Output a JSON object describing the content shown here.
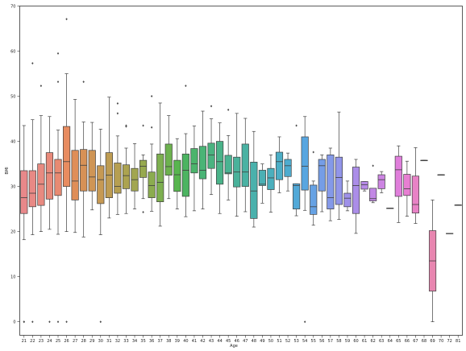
{
  "chart_data": {
    "type": "box",
    "title": "",
    "xlabel": "Age",
    "ylabel": "BMI",
    "ylim": [
      -3,
      70
    ],
    "yticks": [
      0,
      10,
      20,
      30,
      40,
      50,
      60,
      70
    ],
    "grid": false,
    "legend": "none",
    "categories": [
      "21",
      "22",
      "23",
      "24",
      "25",
      "26",
      "27",
      "28",
      "29",
      "30",
      "31",
      "32",
      "33",
      "34",
      "35",
      "36",
      "37",
      "38",
      "39",
      "40",
      "41",
      "42",
      "43",
      "44",
      "45",
      "46",
      "47",
      "48",
      "49",
      "50",
      "51",
      "52",
      "53",
      "54",
      "55",
      "56",
      "57",
      "58",
      "59",
      "60",
      "61",
      "62",
      "63",
      "64",
      "65",
      "66",
      "67",
      "68",
      "69",
      "70",
      "72",
      "81"
    ],
    "boxes": [
      {
        "age": "21",
        "whislo": 18.2,
        "q1": 24.0,
        "med": 27.5,
        "q3": 33.5,
        "whishi": 43.5,
        "fliers": [
          0,
          0
        ],
        "color": "#e8888a"
      },
      {
        "age": "22",
        "whislo": 19.3,
        "q1": 25.5,
        "med": 28.5,
        "q3": 33.5,
        "whishi": 44.8,
        "fliers": [
          57.3,
          0
        ],
        "color": "#e88985"
      },
      {
        "age": "23",
        "whislo": 20.0,
        "q1": 25.8,
        "med": 30.5,
        "q3": 35.0,
        "whishi": 45.7,
        "fliers": [
          52.3
        ],
        "color": "#e88a80"
      },
      {
        "age": "24",
        "whislo": 20.5,
        "q1": 27.2,
        "med": 33.0,
        "q3": 37.5,
        "whishi": 45.5,
        "fliers": [
          0
        ],
        "color": "#e8897a"
      },
      {
        "age": "25",
        "whislo": 19.4,
        "q1": 28.0,
        "med": 33.0,
        "q3": 36.0,
        "whishi": 42.5,
        "fliers": [
          59.5,
          53.2,
          0
        ],
        "color": "#e88a72"
      },
      {
        "age": "26",
        "whislo": 20.0,
        "q1": 30.0,
        "med": 35.5,
        "q3": 43.3,
        "whishi": 55.0,
        "fliers": [
          67.1,
          0
        ],
        "color": "#e88c60"
      },
      {
        "age": "27",
        "whislo": 19.8,
        "q1": 27.0,
        "med": 31.2,
        "q3": 38.0,
        "whishi": 49.3,
        "fliers": [],
        "color": "#df8e58"
      },
      {
        "age": "28",
        "whislo": 18.8,
        "q1": 29.0,
        "med": 34.7,
        "q3": 38.2,
        "whishi": 44.3,
        "fliers": [
          53.2
        ],
        "color": "#d79156"
      },
      {
        "age": "29",
        "whislo": 24.8,
        "q1": 29.0,
        "med": 32.1,
        "q3": 38.0,
        "whishi": 44.2,
        "fliers": [],
        "color": "#cf9555"
      },
      {
        "age": "30",
        "whislo": 19.3,
        "q1": 26.2,
        "med": 31.5,
        "q3": 34.6,
        "whishi": 42.7,
        "fliers": [
          0
        ],
        "color": "#c69953"
      },
      {
        "age": "31",
        "whislo": 23.0,
        "q1": 27.5,
        "med": 32.5,
        "q3": 37.5,
        "whishi": 49.8,
        "fliers": [],
        "color": "#be9c52"
      },
      {
        "age": "32",
        "whislo": 23.8,
        "q1": 28.5,
        "med": 30.0,
        "q3": 35.2,
        "whishi": 41.2,
        "fliers": [
          48.4,
          46.2
        ],
        "color": "#b69f51"
      },
      {
        "age": "33",
        "whislo": 24.0,
        "q1": 29.5,
        "med": 32.4,
        "q3": 34.8,
        "whishi": 38.5,
        "fliers": [
          43.5,
          43.3
        ],
        "color": "#aca350"
      },
      {
        "age": "34",
        "whislo": 25.0,
        "q1": 29.0,
        "med": 31.5,
        "q3": 34.0,
        "whishi": 39.5,
        "fliers": [],
        "color": "#a2a650"
      },
      {
        "age": "35",
        "whislo": 27.3,
        "q1": 32.0,
        "med": 34.5,
        "q3": 35.8,
        "whishi": 37.0,
        "fliers": [
          43.5,
          24.3
        ],
        "color": "#97a94f"
      },
      {
        "age": "36",
        "whislo": 24.5,
        "q1": 27.5,
        "med": 30.2,
        "q3": 33.2,
        "whishi": 39.4,
        "fliers": [
          43.1,
          50.0
        ],
        "color": "#8bac4f"
      },
      {
        "age": "37",
        "whislo": 21.2,
        "q1": 26.6,
        "med": 30.9,
        "q3": 37.2,
        "whishi": 48.5,
        "fliers": [],
        "color": "#7daf4f"
      },
      {
        "age": "38",
        "whislo": 27.3,
        "q1": 32.5,
        "med": 34.4,
        "q3": 39.4,
        "whishi": 45.7,
        "fliers": [],
        "color": "#6db24f"
      },
      {
        "age": "39",
        "whislo": 25.0,
        "q1": 28.9,
        "med": 32.6,
        "q3": 35.8,
        "whishi": 40.6,
        "fliers": [],
        "color": "#58b54f"
      },
      {
        "age": "40",
        "whislo": 23.3,
        "q1": 27.8,
        "med": 33.6,
        "q3": 37.2,
        "whishi": 41.7,
        "fliers": [
          52.3
        ],
        "color": "#4cb461"
      },
      {
        "age": "41",
        "whislo": 24.6,
        "q1": 33.0,
        "med": 35.0,
        "q3": 38.4,
        "whishi": 43.4,
        "fliers": [],
        "color": "#4cb46c"
      },
      {
        "age": "42",
        "whislo": 25.0,
        "q1": 31.7,
        "med": 33.6,
        "q3": 38.9,
        "whishi": 46.7,
        "fliers": [],
        "color": "#4ab476"
      },
      {
        "age": "43",
        "whislo": 28.2,
        "q1": 34.0,
        "med": 37.0,
        "q3": 39.6,
        "whishi": 45.0,
        "fliers": [
          47.8
        ],
        "color": "#4ab380"
      },
      {
        "age": "44",
        "whislo": 24.0,
        "q1": 30.5,
        "med": 35.5,
        "q3": 40.0,
        "whishi": 44.1,
        "fliers": [],
        "color": "#4ab389"
      },
      {
        "age": "45",
        "whislo": 27.0,
        "q1": 32.8,
        "med": 33.0,
        "q3": 36.9,
        "whishi": 41.3,
        "fliers": [
          47.0
        ],
        "color": "#4ab392"
      },
      {
        "age": "46",
        "whislo": 23.4,
        "q1": 29.9,
        "med": 33.2,
        "q3": 36.5,
        "whishi": 46.2,
        "fliers": [],
        "color": "#4ab29b"
      },
      {
        "age": "47",
        "whislo": 24.4,
        "q1": 30.0,
        "med": 33.2,
        "q3": 39.4,
        "whishi": 45.1,
        "fliers": [],
        "color": "#4ab2a3"
      },
      {
        "age": "48",
        "whislo": 21.0,
        "q1": 22.9,
        "med": 29.0,
        "q3": 35.4,
        "whishi": 42.2,
        "fliers": [],
        "color": "#4ab1ac"
      },
      {
        "age": "49",
        "whislo": 26.3,
        "q1": 30.2,
        "med": 30.5,
        "q3": 33.6,
        "whishi": 35.0,
        "fliers": [],
        "color": "#4bb0b4"
      },
      {
        "age": "50",
        "whislo": 24.3,
        "q1": 29.3,
        "med": 31.9,
        "q3": 34.0,
        "whishi": 37.0,
        "fliers": [],
        "color": "#4bafbd"
      },
      {
        "age": "51",
        "whislo": 28.6,
        "q1": 31.5,
        "med": 35.5,
        "q3": 37.6,
        "whishi": 41.0,
        "fliers": [],
        "color": "#4caec6"
      },
      {
        "age": "52",
        "whislo": 29.0,
        "q1": 32.2,
        "med": 34.6,
        "q3": 36.0,
        "whishi": 37.4,
        "fliers": [],
        "color": "#4eaccf"
      },
      {
        "age": "53",
        "whislo": 23.5,
        "q1": 25.0,
        "med": 30.2,
        "q3": 30.6,
        "whishi": 30.6,
        "fliers": [
          43.5
        ],
        "color": "#52a9d8"
      },
      {
        "age": "54",
        "whislo": 24.7,
        "q1": 29.2,
        "med": 34.5,
        "q3": 41.0,
        "whishi": 45.5,
        "fliers": [
          0
        ],
        "color": "#58a6e0"
      },
      {
        "age": "55",
        "whislo": 21.4,
        "q1": 23.8,
        "med": 25.5,
        "q3": 30.3,
        "whishi": 31.2,
        "fliers": [
          37.6
        ],
        "color": "#66a2e4"
      },
      {
        "age": "56",
        "whislo": 24.4,
        "q1": 29.0,
        "med": 34.6,
        "q3": 36.0,
        "whishi": 37.0,
        "fliers": [],
        "color": "#759de6"
      },
      {
        "age": "57",
        "whislo": 22.4,
        "q1": 25.0,
        "med": 27.5,
        "q3": 37.0,
        "whishi": 38.5,
        "fliers": [],
        "color": "#8499e8"
      },
      {
        "age": "58",
        "whislo": 22.7,
        "q1": 26.0,
        "med": 32.0,
        "q3": 36.5,
        "whishi": 46.5,
        "fliers": [],
        "color": "#9295e9"
      },
      {
        "age": "59",
        "whislo": 24.6,
        "q1": 25.5,
        "med": 27.4,
        "q3": 28.5,
        "whishi": 31.2,
        "fliers": [],
        "color": "#9f91e9"
      },
      {
        "age": "60",
        "whislo": 19.6,
        "q1": 24.0,
        "med": 30.2,
        "q3": 34.3,
        "whishi": 36.0,
        "fliers": [],
        "color": "#ab8de8"
      },
      {
        "age": "61",
        "whislo": 29.0,
        "q1": 29.4,
        "med": 30.4,
        "q3": 31.1,
        "whishi": 31.1,
        "fliers": [],
        "color": "#b78ae7"
      },
      {
        "age": "62",
        "whislo": 26.4,
        "q1": 26.8,
        "med": 27.3,
        "q3": 29.6,
        "whishi": 29.6,
        "fliers": [
          34.6
        ],
        "color": "#c287e5"
      },
      {
        "age": "63",
        "whislo": 28.6,
        "q1": 29.5,
        "med": 31.5,
        "q3": 32.6,
        "whishi": 33.3,
        "fliers": [],
        "color": "#cc84e2"
      },
      {
        "age": "64",
        "whislo": 25.2,
        "q1": 25.2,
        "med": 25.2,
        "q3": 25.2,
        "whishi": 25.2,
        "fliers": [],
        "color": "#d681df"
      },
      {
        "age": "65",
        "whislo": 22.0,
        "q1": 27.8,
        "med": 33.7,
        "q3": 36.7,
        "whishi": 39.0,
        "fliers": [],
        "color": "#e07edb"
      },
      {
        "age": "66",
        "whislo": 23.4,
        "q1": 28.0,
        "med": 29.5,
        "q3": 32.7,
        "whishi": 35.6,
        "fliers": [],
        "color": "#e77fd2"
      },
      {
        "age": "67",
        "whislo": 21.8,
        "q1": 24.1,
        "med": 26.0,
        "q3": 32.3,
        "whishi": 38.6,
        "fliers": [],
        "color": "#e882c6"
      },
      {
        "age": "68",
        "whislo": 35.8,
        "q1": 35.8,
        "med": 35.8,
        "q3": 35.8,
        "whishi": 35.8,
        "fliers": [],
        "color": "#e884bb"
      },
      {
        "age": "69",
        "whislo": 0.0,
        "q1": 6.8,
        "med": 13.5,
        "q3": 20.2,
        "whishi": 27.0,
        "fliers": [],
        "color": "#e886b0"
      },
      {
        "age": "70",
        "whislo": 32.6,
        "q1": 32.6,
        "med": 32.6,
        "q3": 32.6,
        "whishi": 32.6,
        "fliers": [],
        "color": "#e887a6"
      },
      {
        "age": "72",
        "whislo": 19.6,
        "q1": 19.6,
        "med": 19.6,
        "q3": 19.6,
        "whishi": 19.6,
        "fliers": [],
        "color": "#e8889c"
      },
      {
        "age": "81",
        "whislo": 25.9,
        "q1": 25.9,
        "med": 25.9,
        "q3": 25.9,
        "whishi": 25.9,
        "fliers": [],
        "color": "#e88993"
      }
    ]
  }
}
